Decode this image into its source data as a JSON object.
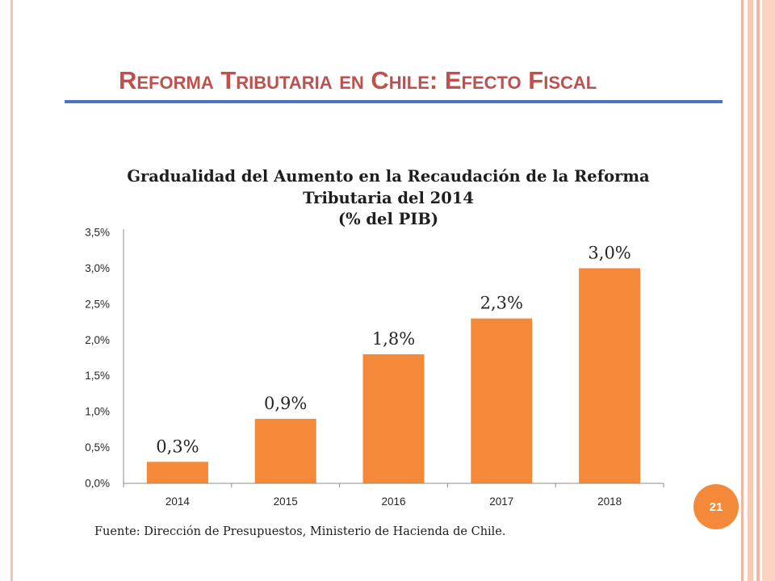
{
  "slide": {
    "title": "Reforma Tributaria en Chile: Efecto Fiscal",
    "source_note": "Fuente: Dirección de Presupuestos, Ministerio de Hacienda de Chile.",
    "page_number": "21"
  },
  "colors": {
    "title": "#C0504D",
    "rule": "#4A74C4",
    "accent": "#F5893A",
    "border": "#F6C3AE"
  },
  "chart_data": {
    "type": "bar",
    "title": "Gradualidad del Aumento en la Recaudación de la Reforma\nTributaria del 2014",
    "subtitle": "(% del PIB)",
    "categories": [
      "2014",
      "2015",
      "2016",
      "2017",
      "2018"
    ],
    "values": [
      0.3,
      0.9,
      1.8,
      2.3,
      3.0
    ],
    "data_labels": [
      "0,3%",
      "0,9%",
      "1,8%",
      "2,3%",
      "3,0%"
    ],
    "xlabel": "",
    "ylabel": "",
    "ylim": [
      0,
      3.5
    ],
    "yticks": [
      0,
      0.5,
      1.0,
      1.5,
      2.0,
      2.5,
      3.0,
      3.5
    ],
    "ytick_labels": [
      "0,0%",
      "0,5%",
      "1,0%",
      "1,5%",
      "2,0%",
      "2,5%",
      "3,0%",
      "3,5%"
    ],
    "grid": false,
    "legend": "none",
    "bar_color": "#F5893A"
  }
}
